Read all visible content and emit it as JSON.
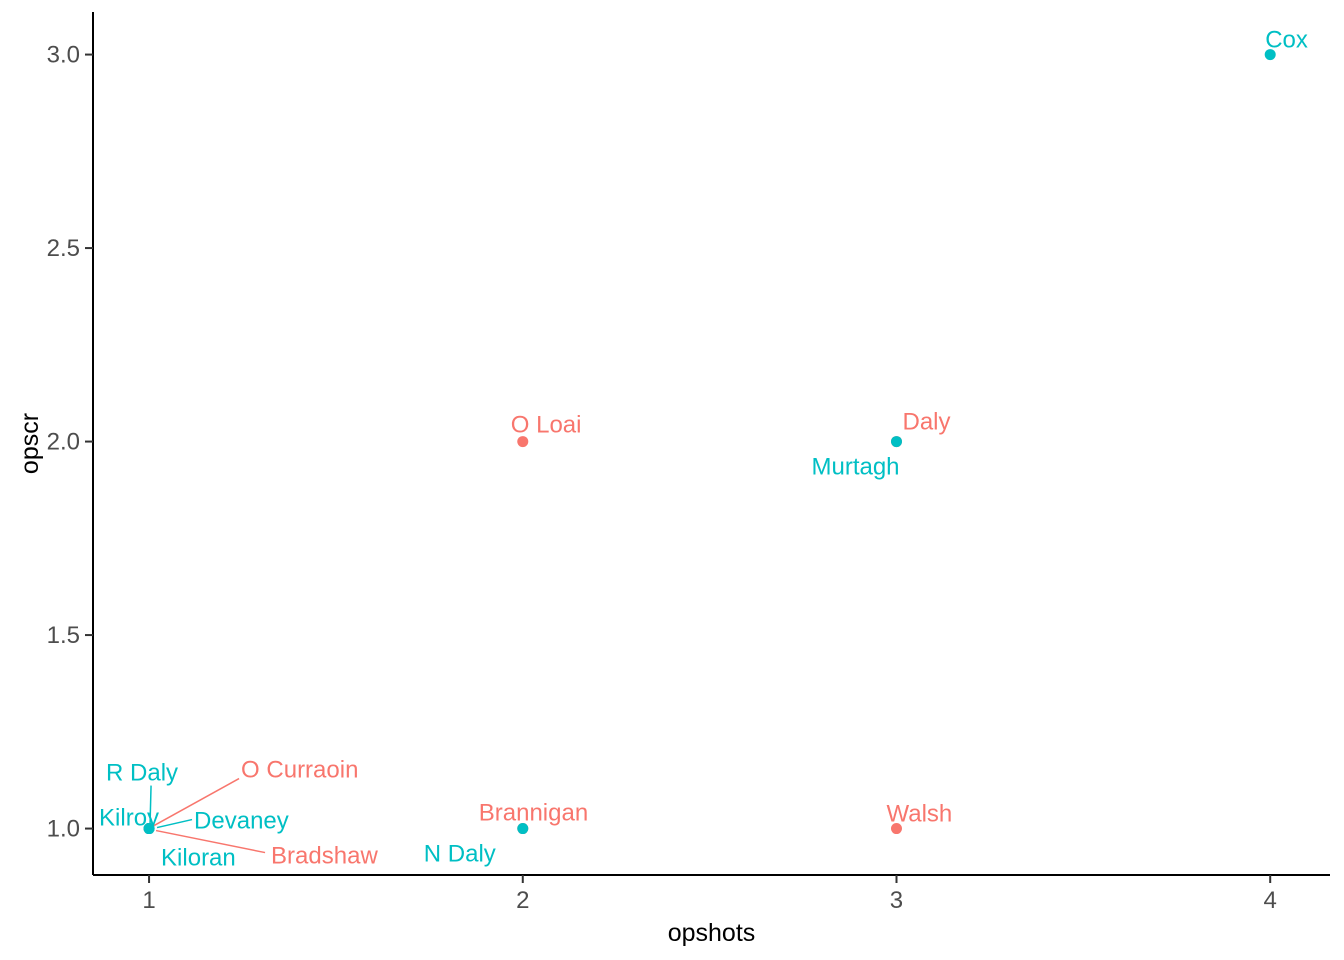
{
  "chart_data": {
    "type": "scatter",
    "title": "",
    "xlabel": "opshots",
    "ylabel": "opscr",
    "xlim": [
      0.85,
      4.16
    ],
    "ylim": [
      0.88,
      3.11
    ],
    "grid": false,
    "legend_position": "none",
    "x_ticks": {
      "values": [
        1,
        2,
        3,
        4
      ],
      "labels": [
        "1",
        "2",
        "3",
        "4"
      ]
    },
    "y_ticks": {
      "values": [
        1.0,
        1.5,
        2.0,
        2.5,
        3.0
      ],
      "labels": [
        "1.0",
        "1.5",
        "2.0",
        "2.5",
        "3.0"
      ]
    },
    "group_colors": {
      "teal": "#00BFC4",
      "salmon": "#F8766D"
    },
    "point_radius": 5.5,
    "points": [
      {
        "name": "O Loai",
        "x": 2,
        "y": 2,
        "group": "salmon",
        "label_offset": [
          -12,
          -9
        ]
      },
      {
        "name": "Daly",
        "x": 3,
        "y": 2,
        "group": "salmon",
        "label_offset": [
          6,
          -12
        ]
      },
      {
        "name": "Brannigan",
        "x": 2,
        "y": 1,
        "group": "salmon",
        "label_offset": [
          -44,
          -8
        ]
      },
      {
        "name": "Walsh",
        "x": 3,
        "y": 1,
        "group": "salmon",
        "label_offset": [
          -10,
          -7
        ]
      },
      {
        "name": "O Curraoin",
        "x": 1,
        "y": 1,
        "group": "salmon",
        "label_offset": [
          92,
          -51
        ],
        "segment": [
          90,
          -50,
          5,
          -3
        ]
      },
      {
        "name": "Bradshaw",
        "x": 1,
        "y": 1,
        "group": "salmon",
        "label_offset": [
          122,
          35
        ],
        "segment": [
          116,
          24,
          7,
          2
        ]
      },
      {
        "name": "Cox",
        "x": 4,
        "y": 3,
        "group": "teal",
        "label_offset": [
          -5,
          -7
        ]
      },
      {
        "name": "Murtagh",
        "x": 3,
        "y": 2,
        "group": "teal",
        "label_offset": [
          -85,
          33
        ]
      },
      {
        "name": "N Daly",
        "x": 2,
        "y": 1,
        "group": "teal",
        "label_offset": [
          -99,
          33
        ]
      },
      {
        "name": "R Daly",
        "x": 1,
        "y": 1,
        "group": "teal",
        "label_offset": [
          -43,
          -48
        ],
        "segment": [
          2,
          -43,
          1,
          -5
        ]
      },
      {
        "name": "Kilroy",
        "x": 1,
        "y": 1,
        "group": "teal",
        "label_offset": [
          -50,
          -3
        ]
      },
      {
        "name": "Devaney",
        "x": 1,
        "y": 1,
        "group": "teal",
        "label_offset": [
          45,
          0
        ],
        "segment": [
          43,
          -9,
          8,
          -1
        ]
      },
      {
        "name": "Kiloran",
        "x": 1,
        "y": 1,
        "group": "teal",
        "label_offset": [
          12,
          37
        ]
      }
    ],
    "styles": {
      "background": "#ffffff",
      "axis_line_color": "#000000",
      "axis_tick_color": "#333333",
      "axis_text_color": "#4d4d4d",
      "axis_title_color": "#000000",
      "tick_font_size": 24,
      "title_font_size": 25,
      "label_font_size": 24
    }
  }
}
